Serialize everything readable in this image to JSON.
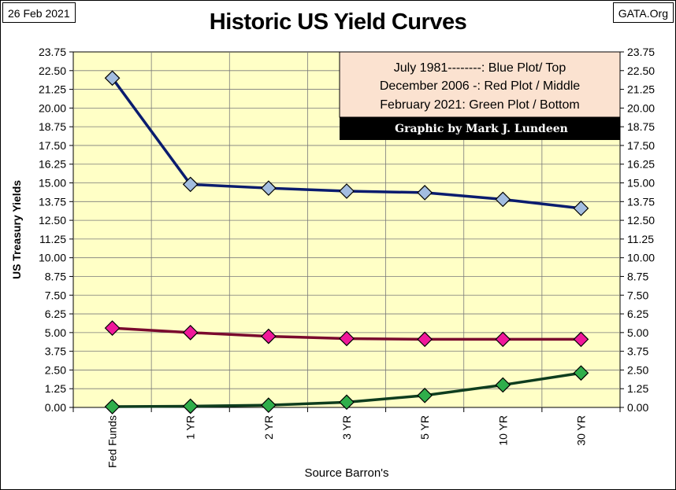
{
  "header": {
    "date": "26 Feb 2021",
    "source": "GATA.Org"
  },
  "chart_data": {
    "type": "line",
    "title": "Historic US Yield Curves",
    "xlabel": "Source Barron's",
    "ylabel": "US Treasury Yields",
    "ylim": [
      0,
      23.75
    ],
    "ytick_step": 1.25,
    "yticks": [
      "0.00",
      "1.25",
      "2.50",
      "3.75",
      "5.00",
      "6.25",
      "7.50",
      "8.75",
      "10.00",
      "11.25",
      "12.50",
      "13.75",
      "15.00",
      "16.25",
      "17.50",
      "18.75",
      "20.00",
      "21.25",
      "22.50",
      "23.75"
    ],
    "categories": [
      "Fed Funds",
      "1 YR",
      "2 YR",
      "3 YR",
      "5 YR",
      "10 YR",
      "30 YR"
    ],
    "grid": true,
    "legend_position": "top-right",
    "legend_lines": [
      "July 1981--------: Blue Plot/ Top",
      "December 2006 -: Red Plot / Middle",
      "February 2021: Green Plot / Bottom"
    ],
    "credit": "Graphic by Mark J. Lundeen",
    "series": [
      {
        "values": [
          22.0,
          14.9,
          14.65,
          14.45,
          14.35,
          13.9,
          13.3
        ],
        "line_color": "#0a1c6e",
        "marker_color": "#a3bde0"
      },
      {
        "values": [
          5.3,
          5.0,
          4.75,
          4.6,
          4.55,
          4.55,
          4.55
        ],
        "line_color": "#7a0a2e",
        "marker_color": "#f0189a"
      },
      {
        "values": [
          0.05,
          0.08,
          0.15,
          0.35,
          0.8,
          1.5,
          2.3
        ],
        "line_color": "#0e3d1e",
        "marker_color": "#2fae4b"
      }
    ]
  }
}
